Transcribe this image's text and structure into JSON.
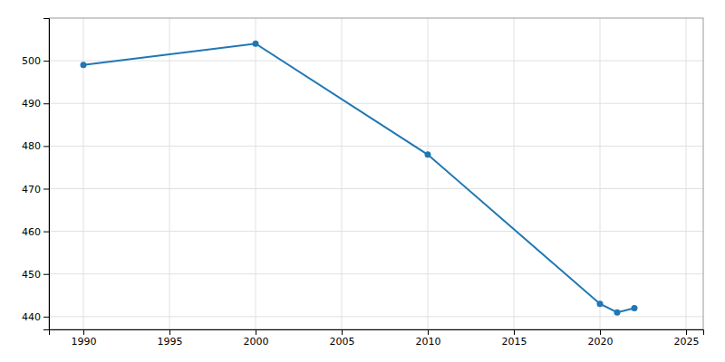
{
  "chart_data": {
    "type": "line",
    "x": [
      1990,
      2000,
      2010,
      2020,
      2021,
      2022
    ],
    "values": [
      499,
      504,
      478,
      443,
      441,
      442
    ],
    "xlim": [
      1988,
      2026
    ],
    "ylim": [
      437,
      510
    ],
    "xticks": [
      1990,
      1995,
      2000,
      2005,
      2010,
      2015,
      2020,
      2025
    ],
    "yticks": [
      440,
      450,
      460,
      470,
      480,
      490,
      500
    ],
    "grid": true,
    "marker": "circle"
  }
}
